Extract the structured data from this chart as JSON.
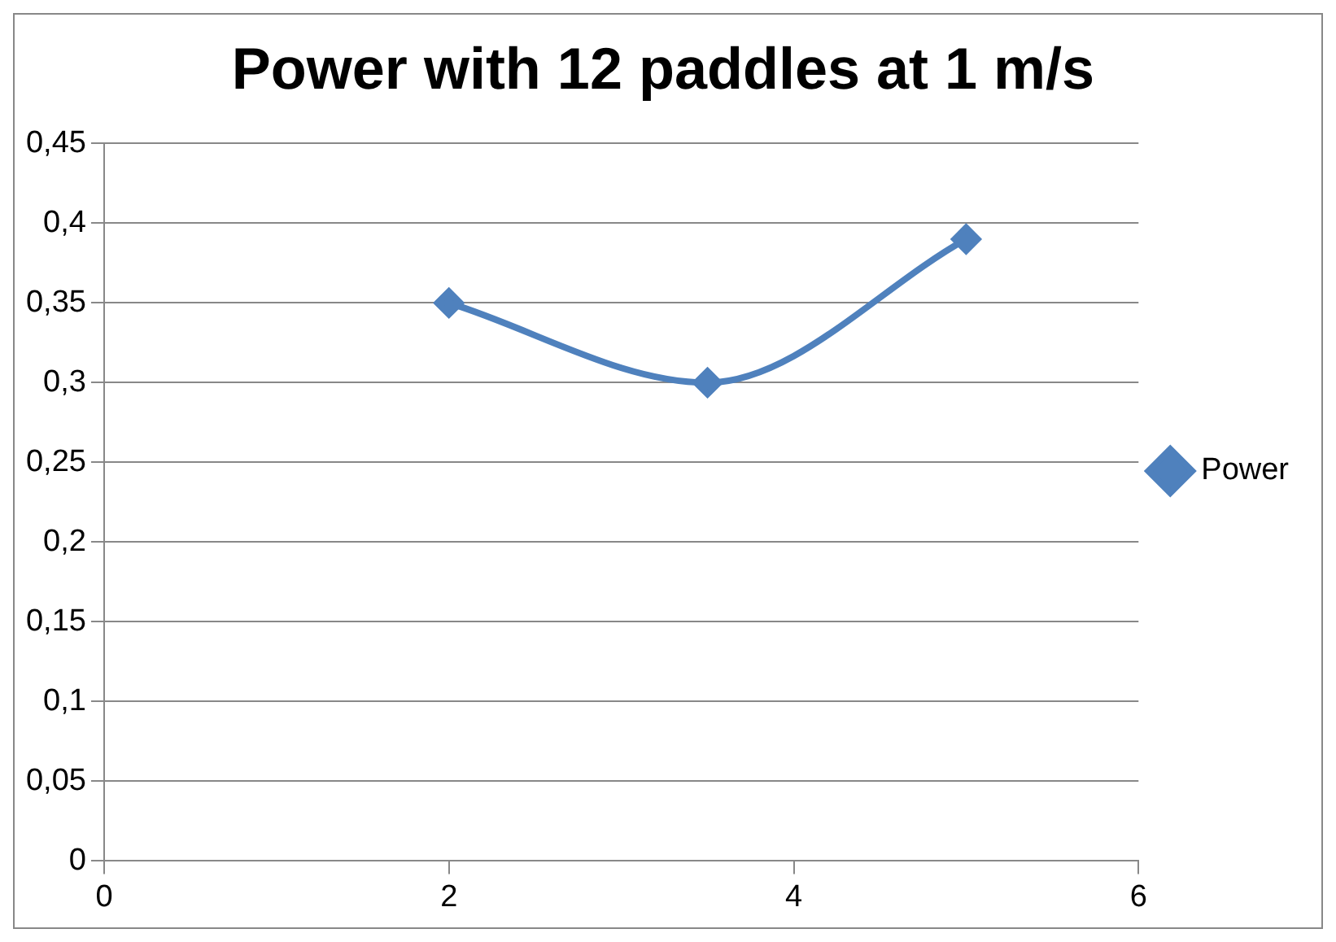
{
  "chart_data": {
    "type": "line",
    "title": "Power with 12 paddles at 1 m/s",
    "x": [
      2,
      3.5,
      5
    ],
    "series": [
      {
        "name": "Power",
        "color": "#4f81bd",
        "values": [
          0.35,
          0.3,
          0.39
        ]
      }
    ],
    "xlim": [
      0,
      6
    ],
    "xticks": [
      0,
      2,
      4,
      6
    ],
    "ylim": [
      0,
      0.45
    ],
    "yticks": [
      0,
      {
        "value": 0.05,
        "label": "0,05"
      },
      {
        "value": 0.1,
        "label": "0,1"
      },
      {
        "value": 0.15,
        "label": "0,15"
      },
      {
        "value": 0.2,
        "label": "0,2"
      },
      {
        "value": 0.25,
        "label": "0,25"
      },
      {
        "value": 0.3,
        "label": "0,3"
      },
      {
        "value": 0.35,
        "label": "0,35"
      },
      {
        "value": 0.4,
        "label": "0,4"
      },
      {
        "value": 0.45,
        "label": "0,45"
      }
    ],
    "grid": "y",
    "legend": "right",
    "marker": "diamond",
    "line_style": "solid"
  }
}
